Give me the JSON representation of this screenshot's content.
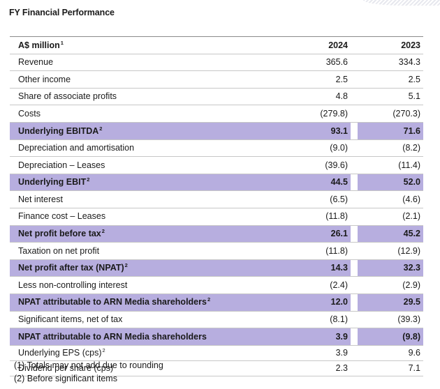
{
  "title": "FY Financial Performance",
  "header": {
    "label": "A$ million",
    "note": "1",
    "y1": "2024",
    "y2": "2023"
  },
  "rows": [
    {
      "label": "Revenue",
      "note": "",
      "y1": "365.6",
      "y2": "334.3",
      "hl": false
    },
    {
      "label": "Other income",
      "note": "",
      "y1": "2.5",
      "y2": "2.5",
      "hl": false
    },
    {
      "label": "Share of associate profits",
      "note": "",
      "y1": "4.8",
      "y2": "5.1",
      "hl": false
    },
    {
      "label": "Costs",
      "note": "",
      "y1": "(279.8)",
      "y2": "(270.3)",
      "hl": false
    },
    {
      "label": "Underlying EBITDA",
      "note": "2",
      "y1": "93.1",
      "y2": "71.6",
      "hl": true
    },
    {
      "label": "Depreciation and amortisation",
      "note": "",
      "y1": "(9.0)",
      "y2": "(8.2)",
      "hl": false
    },
    {
      "label": "Depreciation – Leases",
      "note": "",
      "y1": "(39.6)",
      "y2": "(11.4)",
      "hl": false
    },
    {
      "label": "Underlying EBIT",
      "note": "2",
      "y1": "44.5",
      "y2": "52.0",
      "hl": true
    },
    {
      "label": "Net interest",
      "note": "",
      "y1": "(6.5)",
      "y2": "(4.6)",
      "hl": false
    },
    {
      "label": "Finance cost – Leases",
      "note": "",
      "y1": "(11.8)",
      "y2": "(2.1)",
      "hl": false
    },
    {
      "label": "Net profit before tax",
      "note": "2",
      "y1": "26.1",
      "y2": "45.2",
      "hl": true
    },
    {
      "label": "Taxation on net profit",
      "note": "",
      "y1": "(11.8)",
      "y2": "(12.9)",
      "hl": false
    },
    {
      "label": "Net profit after tax (NPAT)",
      "note": "2",
      "y1": "14.3",
      "y2": "32.3",
      "hl": true
    },
    {
      "label": "Less non-controlling interest",
      "note": "",
      "y1": "(2.4)",
      "y2": "(2.9)",
      "hl": false
    },
    {
      "label": "NPAT attributable to ARN Media shareholders",
      "note": "2",
      "y1": "12.0",
      "y2": "29.5",
      "hl": true
    },
    {
      "label": "Significant items, net of tax",
      "note": "",
      "y1": "(8.1)",
      "y2": "(39.3)",
      "hl": false
    },
    {
      "label": "NPAT attributable to ARN Media shareholders",
      "note": "",
      "y1": "3.9",
      "y2": "(9.8)",
      "hl": true
    },
    {
      "label": "Underlying EPS (cps)",
      "note": "2",
      "y1": "3.9",
      "y2": "9.6",
      "hl": false,
      "compact": true
    },
    {
      "label": "Dividend per share (cps)",
      "note": "",
      "y1": "2.3",
      "y2": "7.1",
      "hl": false,
      "compact": true
    }
  ],
  "footnotes": [
    "(1) Totals may not add due to rounding",
    "(2) Before significant items"
  ]
}
